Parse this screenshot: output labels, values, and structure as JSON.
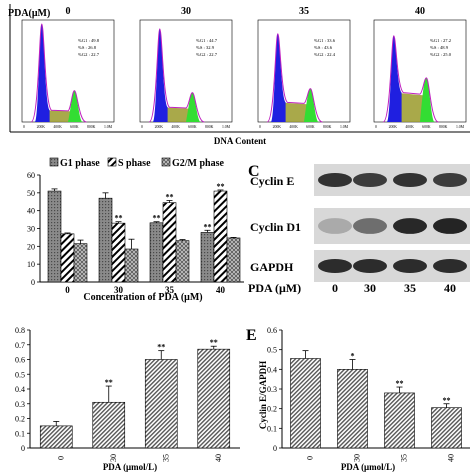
{
  "flow": {
    "y_axis_label": "PDA(μM)",
    "x_axis_label": "DNA Content",
    "panels": [
      {
        "pda": "0",
        "g1": "%G1 : 49.8",
        "s": "%S  : 26.8",
        "g2": "%G2 : 22.7",
        "ticks": [
          "0",
          "200K",
          "400K",
          "600K",
          "800K",
          "1.0M"
        ],
        "g1_height": 1.0,
        "g2_height": 0.32,
        "s_level": 0.12
      },
      {
        "pda": "30",
        "g1": "%G1 : 44.7",
        "s": "%S  : 32.9",
        "g2": "%G2 : 22.7",
        "ticks": [
          "0",
          "200K",
          "400K",
          "600K",
          "800K",
          "1.0M"
        ],
        "g1_height": 0.95,
        "g2_height": 0.3,
        "s_level": 0.15
      },
      {
        "pda": "35",
        "g1": "%G1 : 33.6",
        "s": "%S  : 43.6",
        "g2": "%G2 : 22.4",
        "ticks": [
          "0",
          "200K",
          "400K",
          "600K",
          "800K",
          "1.0M"
        ],
        "g1_height": 0.9,
        "g2_height": 0.34,
        "s_level": 0.2
      },
      {
        "pda": "40",
        "g1": "%G1 : 27.2",
        "s": "%S  : 48.9",
        "g2": "%G2 : 25.0",
        "ticks": [
          "0",
          "200K",
          "400K",
          "600K",
          "800K",
          "1.0M"
        ],
        "g1_height": 0.88,
        "g2_height": 0.45,
        "s_level": 0.3
      }
    ],
    "colors": {
      "g1": "#1f1fe0",
      "s": "#9a9a2a",
      "g2": "#33dd33",
      "outline": "#c020c0"
    }
  },
  "chart_data": [
    {
      "type": "bar",
      "categories": [
        "0",
        "30",
        "35",
        "40"
      ],
      "series": [
        {
          "name": "G1 phase",
          "values": [
            51.0,
            47.0,
            33.2,
            27.8
          ],
          "errors": [
            1.2,
            3.0,
            0.6,
            1.2
          ],
          "sig": [
            "",
            "",
            "**",
            "**"
          ]
        },
        {
          "name": "S phase",
          "values": [
            27.0,
            33.0,
            44.5,
            51.0
          ],
          "errors": [
            0.5,
            0.8,
            1.2,
            0.6
          ],
          "sig": [
            "",
            "**",
            "**",
            "**"
          ]
        },
        {
          "name": "G2/M phase",
          "values": [
            21.5,
            18.5,
            23.2,
            24.7
          ],
          "errors": [
            2.0,
            5.5,
            0.6,
            0.3
          ],
          "sig": [
            "",
            "",
            "",
            ""
          ]
        }
      ],
      "xlabel": "Concentration of PDA (μM)",
      "ylabel": "",
      "ylim": [
        0,
        60
      ],
      "yticks": [
        "0",
        "10",
        "20",
        "30",
        "40",
        "50",
        "60"
      ],
      "legend": "top"
    },
    {
      "type": "bar",
      "categories": [
        "0",
        "30",
        "35",
        "40"
      ],
      "values": [
        0.15,
        0.31,
        0.6,
        0.67
      ],
      "errors": [
        0.03,
        0.11,
        0.06,
        0.02
      ],
      "sig": [
        "",
        "**",
        "**",
        "**"
      ],
      "xlabel": "PDA (μmol/L)",
      "ylabel": "",
      "ylim": [
        0,
        0.8
      ],
      "yticks": [
        "0",
        "0.1",
        "0.2",
        "0.3",
        "0.4",
        "0.5",
        "0.6",
        "0.7",
        "0.8"
      ]
    },
    {
      "type": "bar",
      "categories": [
        "0",
        "30",
        "35",
        "40"
      ],
      "values": [
        0.455,
        0.4,
        0.28,
        0.205
      ],
      "errors": [
        0.04,
        0.05,
        0.03,
        0.02
      ],
      "sig": [
        "",
        "*",
        "**",
        "**"
      ],
      "xlabel": "PDA (μmol/L)",
      "ylabel": "Cyclin E/GAPDH",
      "ylim": [
        0,
        0.6
      ],
      "yticks": [
        "0",
        "0.1",
        "0.2",
        "0.3",
        "0.4",
        "0.5",
        "0.6"
      ]
    }
  ],
  "blot": {
    "panel_letter": "C",
    "rows": [
      {
        "label": "Cyclin E",
        "intensity": [
          0.85,
          0.8,
          0.85,
          0.8
        ]
      },
      {
        "label": "Cyclin D1",
        "intensity": [
          0.25,
          0.55,
          0.9,
          0.92
        ]
      },
      {
        "label": "GAPDH",
        "intensity": [
          0.88,
          0.88,
          0.88,
          0.88
        ]
      }
    ],
    "xlabel": "PDA (μM)",
    "lanes": [
      "0",
      "30",
      "35",
      "40"
    ]
  },
  "panel_e_letter": "E"
}
